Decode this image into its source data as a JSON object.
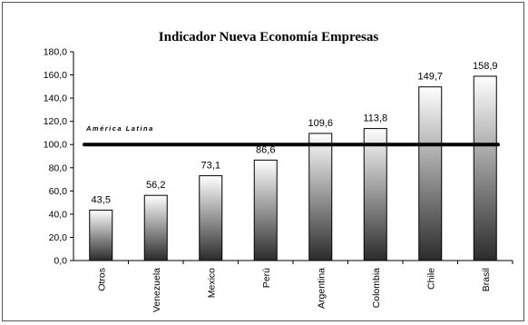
{
  "chart_data": {
    "type": "bar",
    "title": "Indicador Nueva Economía Empresas",
    "categories": [
      "Otros",
      "Venezuela",
      "Mexico",
      "Perú",
      "Argentina",
      "Colombia",
      "Chile",
      "Brasil"
    ],
    "values": [
      43.5,
      56.2,
      73.1,
      86.6,
      109.6,
      113.8,
      149.7,
      158.9
    ],
    "value_labels": [
      "43,5",
      "56,2",
      "73,1",
      "86,6",
      "109,6",
      "113,8",
      "149,7",
      "158,9"
    ],
    "ylim": [
      0,
      180
    ],
    "yticks": [
      "0,0",
      "20,0",
      "40,0",
      "60,0",
      "80,0",
      "100,0",
      "120,0",
      "140,0",
      "160,0",
      "180,0"
    ],
    "xlabel": "",
    "ylabel": "",
    "grid": false,
    "bar_gradient": [
      "#ffffff",
      "#2b2b2b"
    ],
    "reference_line": {
      "label": "América Latina",
      "value": 100
    }
  }
}
